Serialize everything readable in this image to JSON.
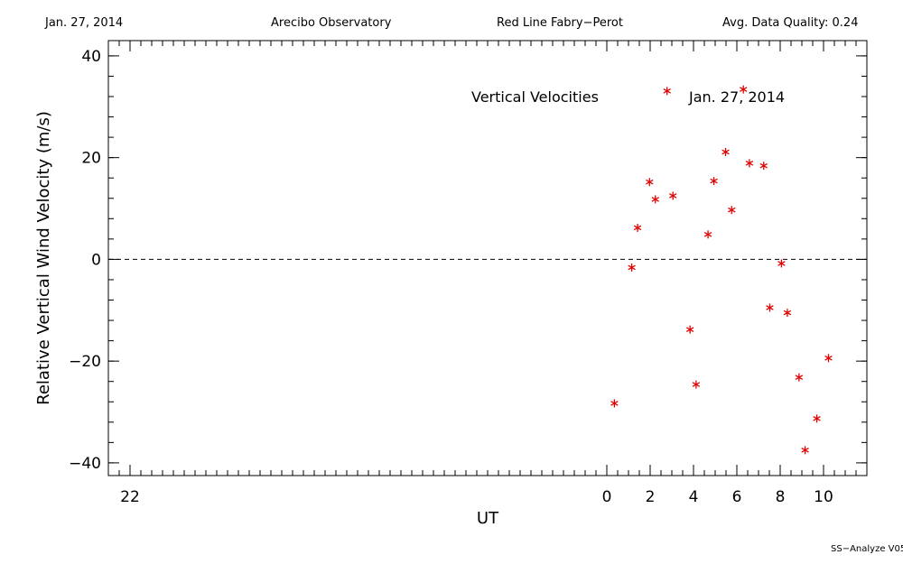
{
  "header": {
    "date": "Jan. 27, 2014",
    "observatory": "Arecibo Observatory",
    "instrument": "Red Line Fabry−Perot",
    "quality": "Avg. Data Quality: 0.24"
  },
  "footer": {
    "version": "SS−Analyze V05"
  },
  "chart_data": {
    "type": "scatter",
    "annotations": [
      "Vertical Velocities",
      "Jan. 27, 2014"
    ],
    "xlabel": "UT",
    "ylabel": "Relative Vertical Wind Velocity (m/s)",
    "xlim": [
      -23.0,
      12.0
    ],
    "ylim": [
      -42.5,
      43.0
    ],
    "x_ticks": [
      {
        "value": -22,
        "label": "22"
      },
      {
        "value": 0,
        "label": "0"
      },
      {
        "value": 2,
        "label": "2"
      },
      {
        "value": 4,
        "label": "4"
      },
      {
        "value": 6,
        "label": "6"
      },
      {
        "value": 8,
        "label": "8"
      },
      {
        "value": 10,
        "label": "10"
      }
    ],
    "y_ticks": [
      {
        "value": 40,
        "label": "40"
      },
      {
        "value": 20,
        "label": "20"
      },
      {
        "value": 0,
        "label": "0"
      },
      {
        "value": -20,
        "label": "−20"
      },
      {
        "value": -40,
        "label": "−40"
      }
    ],
    "zero_line": true,
    "marker_color": "#e00000",
    "marker": "asterisk",
    "series": [
      {
        "x": [
          0.35,
          1.15,
          1.42,
          1.97,
          2.24,
          2.78,
          3.05,
          3.84,
          4.12,
          4.67,
          4.94,
          5.48,
          5.76,
          6.3,
          6.58,
          7.24,
          7.52,
          8.06,
          8.33,
          8.87,
          9.15,
          9.69,
          10.23
        ],
        "y": [
          -28.3,
          -1.6,
          6.2,
          15.2,
          11.8,
          33.1,
          12.5,
          -13.8,
          -24.6,
          4.9,
          15.4,
          21.1,
          9.7,
          33.4,
          18.9,
          18.4,
          -9.5,
          -0.8,
          -10.5,
          -23.2,
          -37.5,
          -31.3,
          -19.4
        ]
      }
    ]
  }
}
